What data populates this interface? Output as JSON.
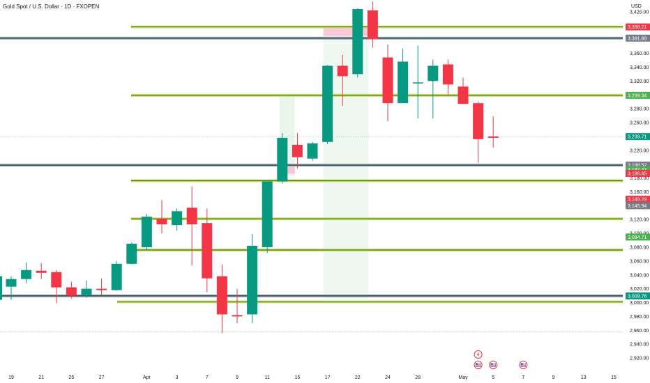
{
  "header": {
    "title": "Gold Spot / U.S. Dollar · 1D · FXOPEN",
    "currency": "USD"
  },
  "chart_data": {
    "type": "candlestick",
    "title": "Gold Spot / U.S. Dollar · 1D · FXOPEN",
    "ylabel": "USD",
    "ylim": [
      2904,
      3437
    ],
    "grid": false,
    "y_ticks": [
      "3,420.00",
      "3,400.00",
      "3,380.00",
      "3,360.00",
      "3,340.00",
      "3,320.00",
      "3,300.00",
      "3,280.00",
      "3,260.00",
      "3,240.00",
      "3,220.00",
      "3,200.00",
      "3,180.00",
      "3,160.00",
      "3,140.00",
      "3,120.00",
      "3,100.00",
      "3,080.00",
      "3,060.00",
      "3,040.00",
      "3,020.00",
      "3,000.00",
      "2,980.00",
      "2,960.00",
      "2,940.00",
      "2,920.00"
    ],
    "x_labels": [
      {
        "i": 0,
        "label": "19"
      },
      {
        "i": 2,
        "label": "21"
      },
      {
        "i": 4,
        "label": "25"
      },
      {
        "i": 6,
        "label": "27"
      },
      {
        "i": 9,
        "label": "Apr"
      },
      {
        "i": 11,
        "label": "3"
      },
      {
        "i": 13,
        "label": "7"
      },
      {
        "i": 15,
        "label": "9"
      },
      {
        "i": 17,
        "label": "11"
      },
      {
        "i": 19,
        "label": "15"
      },
      {
        "i": 21,
        "label": "17"
      },
      {
        "i": 23,
        "label": "22"
      },
      {
        "i": 25,
        "label": "24"
      },
      {
        "i": 27,
        "label": "28"
      },
      {
        "i": 30,
        "label": "May"
      },
      {
        "i": 32,
        "label": "5"
      },
      {
        "i": 34,
        "label": "7"
      },
      {
        "i": 36,
        "label": "9"
      },
      {
        "i": 38,
        "label": "13"
      },
      {
        "i": 40,
        "label": "15"
      }
    ],
    "candles": [
      {
        "date": "Mar 18",
        "o": 3023,
        "h": 3038,
        "l": 3004,
        "c": 3034
      },
      {
        "date": "Mar 19",
        "o": 3034,
        "h": 3058,
        "l": 3028,
        "c": 3047
      },
      {
        "date": "Mar 20",
        "o": 3046,
        "h": 3057,
        "l": 3034,
        "c": 3043
      },
      {
        "date": "Mar 21",
        "o": 3044,
        "h": 3047,
        "l": 2999,
        "c": 3022
      },
      {
        "date": "Mar 24",
        "o": 3022,
        "h": 3030,
        "l": 3006,
        "c": 3010
      },
      {
        "date": "Mar 25",
        "o": 3011,
        "h": 3032,
        "l": 3007,
        "c": 3020
      },
      {
        "date": "Mar 26",
        "o": 3020,
        "h": 3035,
        "l": 3011,
        "c": 3018
      },
      {
        "date": "Mar 27",
        "o": 3018,
        "h": 3060,
        "l": 3017,
        "c": 3056
      },
      {
        "date": "Mar 28",
        "o": 3056,
        "h": 3087,
        "l": 3055,
        "c": 3085
      },
      {
        "date": "Mar 31",
        "o": 3080,
        "h": 3128,
        "l": 3076,
        "c": 3124
      },
      {
        "date": "Apr 1",
        "o": 3121,
        "h": 3148,
        "l": 3100,
        "c": 3113
      },
      {
        "date": "Apr 2",
        "o": 3112,
        "h": 3136,
        "l": 3104,
        "c": 3132
      },
      {
        "date": "Apr 3",
        "o": 3137,
        "h": 3168,
        "l": 3054,
        "c": 3113
      },
      {
        "date": "Apr 4",
        "o": 3115,
        "h": 3136,
        "l": 3015,
        "c": 3035
      },
      {
        "date": "Apr 7",
        "o": 3038,
        "h": 3055,
        "l": 2956,
        "c": 2983
      },
      {
        "date": "Apr 8",
        "o": 2982,
        "h": 3020,
        "l": 2970,
        "c": 2980
      },
      {
        "date": "Apr 9",
        "o": 2983,
        "h": 3099,
        "l": 2970,
        "c": 3082
      },
      {
        "date": "Apr 10",
        "o": 3080,
        "h": 3175,
        "l": 3072,
        "c": 3175
      },
      {
        "date": "Apr 11",
        "o": 3175,
        "h": 3245,
        "l": 3172,
        "c": 3238
      },
      {
        "date": "Apr 14",
        "o": 3228,
        "h": 3245,
        "l": 3194,
        "c": 3210
      },
      {
        "date": "Apr 15",
        "o": 3208,
        "h": 3232,
        "l": 3205,
        "c": 3230
      },
      {
        "date": "Apr 16",
        "o": 3232,
        "h": 3343,
        "l": 3229,
        "c": 3342
      },
      {
        "date": "Apr 17",
        "o": 3342,
        "h": 3358,
        "l": 3284,
        "c": 3327
      },
      {
        "date": "Apr 21",
        "o": 3330,
        "h": 3425,
        "l": 3325,
        "c": 3424
      },
      {
        "date": "Apr 22",
        "o": 3422,
        "h": 3435,
        "l": 3368,
        "c": 3381
      },
      {
        "date": "Apr 23",
        "o": 3354,
        "h": 3373,
        "l": 3262,
        "c": 3288
      },
      {
        "date": "Apr 24",
        "o": 3288,
        "h": 3367,
        "l": 3288,
        "c": 3348
      },
      {
        "date": "Apr 25",
        "o": 3318,
        "h": 3371,
        "l": 3266,
        "c": 3318
      },
      {
        "date": "Apr 28",
        "o": 3320,
        "h": 3351,
        "l": 3266,
        "c": 3342
      },
      {
        "date": "Apr 29",
        "o": 3344,
        "h": 3351,
        "l": 3300,
        "c": 3315
      },
      {
        "date": "Apr 30",
        "o": 3312,
        "h": 3325,
        "l": 3290,
        "c": 3287
      },
      {
        "date": "May 1",
        "o": 3288,
        "h": 3290,
        "l": 3202,
        "c": 3236
      },
      {
        "date": "May 2",
        "o": 3240,
        "h": 3269,
        "l": 3224,
        "c": 3238
      }
    ],
    "horizontal_lines": [
      {
        "price": 3398.21,
        "color": "#2e7d32"
      },
      {
        "price": 3381.89,
        "color": "#37474f"
      },
      {
        "price": 3299.34,
        "color": "#2e7d32"
      },
      {
        "price": 3198.52,
        "color": "#37474f"
      },
      {
        "price": 3176,
        "color": "#2e7d32"
      },
      {
        "price": 3121,
        "color": "#2e7d32"
      },
      {
        "price": 3076,
        "color": "#2e7d32"
      },
      {
        "price": 3009.76,
        "color": "#37474f"
      },
      {
        "price": 3001,
        "color": "#2e7d32"
      }
    ],
    "price_labels": [
      {
        "value": "3,398.21",
        "price": 3398.21,
        "color": "#f23645"
      },
      {
        "value": "3,381.89",
        "price": 3381.89,
        "color": "#787b86"
      },
      {
        "value": "3,299.34",
        "price": 3299.34,
        "color": "#4caf50"
      },
      {
        "value": "3,239.71",
        "price": 3239.71,
        "color": "#089981"
      },
      {
        "value": "3,198.52",
        "price": 3198.52,
        "color": "#787b86"
      },
      {
        "value": "3,197.47",
        "price": 3192,
        "color": "#4caf50"
      },
      {
        "value": "3,186.65",
        "price": 3186.65,
        "color": "#f23645"
      },
      {
        "value": "3,149.29",
        "price": 3149.29,
        "color": "#f23645"
      },
      {
        "value": "3,145.94",
        "price": 3140,
        "color": "#787b86"
      },
      {
        "value": "3,094.71",
        "price": 3094.71,
        "color": "#4caf50"
      },
      {
        "value": "3,009.76",
        "price": 3009.76,
        "color": "#089981"
      }
    ],
    "colors": {
      "up": "#089981",
      "down": "#f23645",
      "level_line": "#2e7d32",
      "level_highlight": "#d4e157",
      "zone_green": "#e8f5e9",
      "zone_red": "#f8bbd0"
    },
    "events": [
      {
        "i": 31,
        "icon": "lightning-icon"
      },
      {
        "i": 31,
        "icon": "us-flag-icon"
      },
      {
        "i": 32,
        "icon": "us-flag-icon"
      },
      {
        "i": 34,
        "icon": "us-flag-icon"
      }
    ]
  }
}
